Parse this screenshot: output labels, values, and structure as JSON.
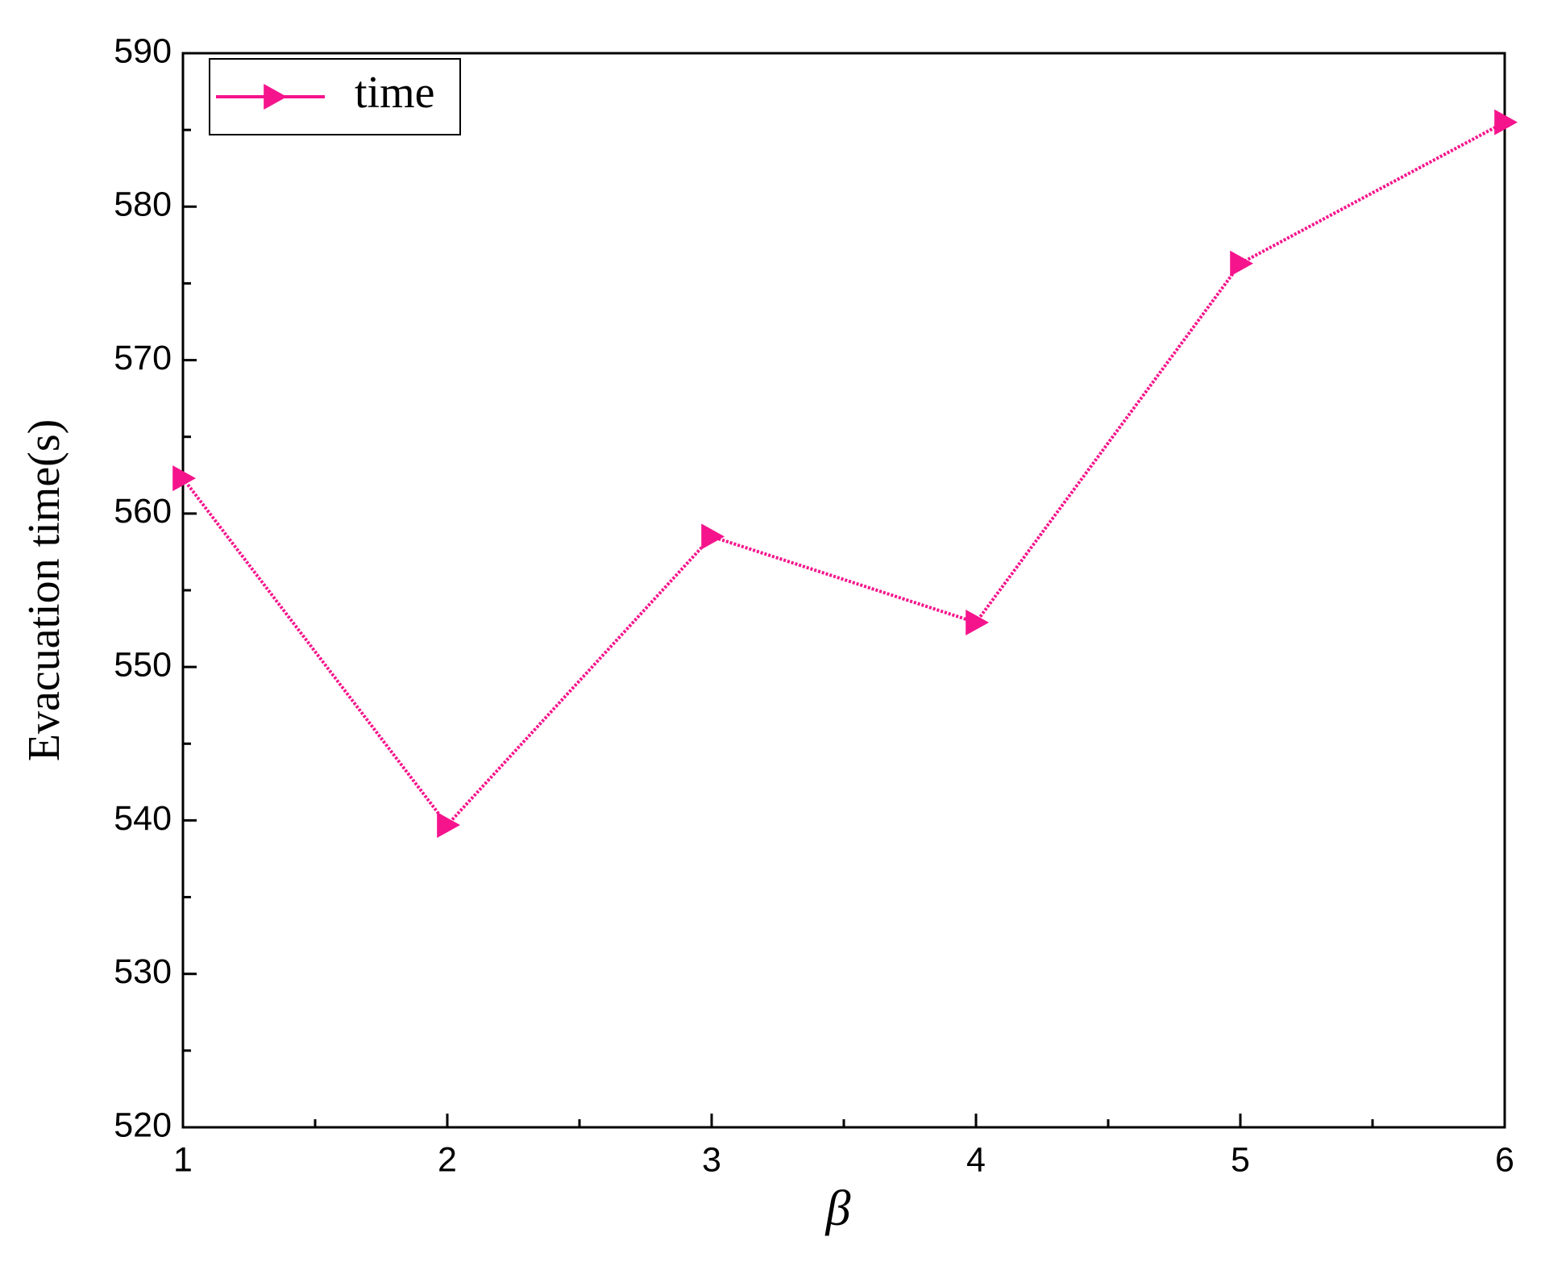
{
  "chart_data": {
    "type": "line",
    "x_label": "β",
    "y_label": "Evacuation time(s)",
    "x": [
      1,
      2,
      3,
      4,
      5,
      6
    ],
    "series": [
      {
        "name": "time",
        "color": "#f5148c",
        "values": [
          562.3,
          539.7,
          558.5,
          552.9,
          576.3,
          585.5
        ]
      }
    ],
    "xlim": [
      1,
      6
    ],
    "xticks": [
      1,
      2,
      3,
      4,
      5,
      6
    ],
    "ylim": [
      520,
      590
    ],
    "yticks": [
      520,
      530,
      540,
      550,
      560,
      570,
      580,
      590
    ],
    "grid": false,
    "legend": "upper left"
  }
}
